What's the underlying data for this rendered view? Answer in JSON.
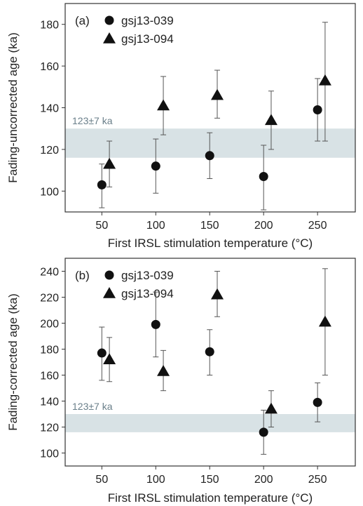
{
  "chart_data": [
    {
      "type": "scatter",
      "panel_label": "(a)",
      "xlabel": "First IRSL stimulation temperature (°C)",
      "ylabel": "Fading-uncorrected age (ka)",
      "xlim": [
        16,
        285
      ],
      "ylim": [
        90,
        190
      ],
      "xticks": [
        50,
        100,
        150,
        200,
        250
      ],
      "yticks": [
        100,
        120,
        140,
        160,
        180
      ],
      "band": {
        "label": "123±7 ka",
        "from": 116,
        "to": 130,
        "color": "#d8e2e5",
        "label_color": "#6a7f8a"
      },
      "legend_position": "top-left",
      "series": [
        {
          "name": "gsj13-039",
          "marker": "circle",
          "points": [
            {
              "x": 50,
              "y": 103,
              "lo": 92,
              "hi": 113
            },
            {
              "x": 100,
              "y": 112,
              "lo": 99,
              "hi": 125
            },
            {
              "x": 150,
              "y": 117,
              "lo": 106,
              "hi": 128
            },
            {
              "x": 200,
              "y": 107,
              "lo": 91,
              "hi": 122
            },
            {
              "x": 250,
              "y": 139,
              "lo": 124,
              "hi": 154
            }
          ]
        },
        {
          "name": "gsj13-094",
          "marker": "triangle",
          "points": [
            {
              "x": 57,
              "y": 113,
              "lo": 102,
              "hi": 124
            },
            {
              "x": 107,
              "y": 141,
              "lo": 127,
              "hi": 155
            },
            {
              "x": 157,
              "y": 146,
              "lo": 135,
              "hi": 158
            },
            {
              "x": 207,
              "y": 134,
              "lo": 120,
              "hi": 148
            },
            {
              "x": 257,
              "y": 153,
              "lo": 124,
              "hi": 181
            }
          ]
        }
      ]
    },
    {
      "type": "scatter",
      "panel_label": "(b)",
      "xlabel": "First IRSL stimulation temperature (°C)",
      "ylabel": "Fading-corrected age (ka)",
      "xlim": [
        16,
        285
      ],
      "ylim": [
        90,
        250
      ],
      "xticks": [
        50,
        100,
        150,
        200,
        250
      ],
      "yticks": [
        100,
        120,
        140,
        160,
        180,
        200,
        220,
        240
      ],
      "band": {
        "label": "123±7 ka",
        "from": 116,
        "to": 130,
        "color": "#d8e2e5",
        "label_color": "#6a7f8a"
      },
      "legend_position": "top-left",
      "series": [
        {
          "name": "gsj13-039",
          "marker": "circle",
          "points": [
            {
              "x": 50,
              "y": 177,
              "lo": 156,
              "hi": 197
            },
            {
              "x": 100,
              "y": 199,
              "lo": 174,
              "hi": 224
            },
            {
              "x": 150,
              "y": 178,
              "lo": 160,
              "hi": 195
            },
            {
              "x": 200,
              "y": 116,
              "lo": 99,
              "hi": 133
            },
            {
              "x": 250,
              "y": 139,
              "lo": 124,
              "hi": 154
            }
          ]
        },
        {
          "name": "gsj13-094",
          "marker": "triangle",
          "points": [
            {
              "x": 57,
              "y": 172,
              "lo": 155,
              "hi": 189
            },
            {
              "x": 107,
              "y": 163,
              "lo": 148,
              "hi": 179
            },
            {
              "x": 157,
              "y": 222,
              "lo": 205,
              "hi": 240
            },
            {
              "x": 207,
              "y": 134,
              "lo": 120,
              "hi": 148
            },
            {
              "x": 257,
              "y": 201,
              "lo": 160,
              "hi": 242
            }
          ]
        }
      ]
    }
  ]
}
